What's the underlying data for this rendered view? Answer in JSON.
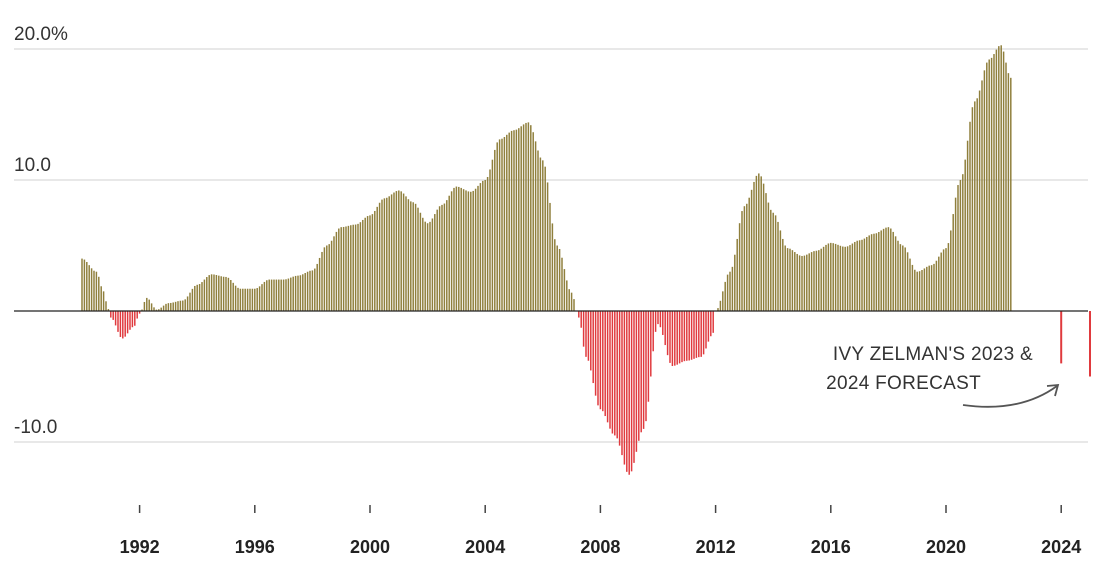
{
  "chart_data": {
    "type": "bar",
    "title": "",
    "xlabel": "",
    "ylabel": "",
    "ylim": [
      -15,
      21
    ],
    "xlim": [
      1990,
      2025
    ],
    "grid": true,
    "y_ticks": [
      {
        "value": 20,
        "label": "20.0%"
      },
      {
        "value": 10,
        "label": "10.0"
      },
      {
        "value": -10,
        "label": "-10.0"
      }
    ],
    "x_ticks": [
      "1992",
      "1996",
      "2000",
      "2004",
      "2008",
      "2012",
      "2016",
      "2020",
      "2024"
    ],
    "colors": {
      "positive": "#8f7f3c",
      "negative": "#e03a3e",
      "grid": "#d9d9d9",
      "axis": "#222222",
      "arrow": "#555555"
    },
    "series": [
      {
        "values": [
          [
            1990.0,
            4.0
          ],
          [
            1990.5,
            3.0
          ],
          [
            1990.75,
            1.5
          ],
          [
            1990.9,
            0.2
          ],
          [
            1991.0,
            -0.5
          ],
          [
            1991.4,
            -2.1
          ],
          [
            1991.8,
            -1.2
          ],
          [
            1992.0,
            -0.2
          ],
          [
            1992.25,
            1.0
          ],
          [
            1992.6,
            0.1
          ],
          [
            1993.0,
            0.6
          ],
          [
            1993.5,
            0.8
          ],
          [
            1994.0,
            2.0
          ],
          [
            1994.5,
            2.8
          ],
          [
            1995.0,
            2.6
          ],
          [
            1995.5,
            1.7
          ],
          [
            1996.0,
            1.7
          ],
          [
            1996.5,
            2.4
          ],
          [
            1997.0,
            2.4
          ],
          [
            1997.5,
            2.7
          ],
          [
            1998.0,
            3.1
          ],
          [
            1998.5,
            5.0
          ],
          [
            1999.0,
            6.4
          ],
          [
            1999.5,
            6.6
          ],
          [
            2000.0,
            7.3
          ],
          [
            2000.5,
            8.6
          ],
          [
            2001.0,
            9.2
          ],
          [
            2001.5,
            8.3
          ],
          [
            2002.0,
            6.7
          ],
          [
            2002.5,
            8.1
          ],
          [
            2003.0,
            9.5
          ],
          [
            2003.5,
            9.1
          ],
          [
            2004.0,
            10.0
          ],
          [
            2004.5,
            13.1
          ],
          [
            2005.0,
            13.8
          ],
          [
            2005.5,
            14.4
          ],
          [
            2006.0,
            11.5
          ],
          [
            2006.5,
            5.0
          ],
          [
            2007.0,
            1.4
          ],
          [
            2007.25,
            -0.5
          ],
          [
            2007.5,
            -3.5
          ],
          [
            2008.0,
            -7.5
          ],
          [
            2008.5,
            -9.5
          ],
          [
            2009.0,
            -12.5
          ],
          [
            2009.5,
            -9.0
          ],
          [
            2010.0,
            -1.0
          ],
          [
            2010.5,
            -4.2
          ],
          [
            2011.0,
            -3.8
          ],
          [
            2011.5,
            -3.5
          ],
          [
            2011.9,
            -1.8
          ],
          [
            2012.0,
            0.0
          ],
          [
            2012.5,
            3.0
          ],
          [
            2013.0,
            8.0
          ],
          [
            2013.5,
            10.5
          ],
          [
            2014.0,
            7.5
          ],
          [
            2014.5,
            4.8
          ],
          [
            2015.0,
            4.2
          ],
          [
            2015.5,
            4.6
          ],
          [
            2016.0,
            5.2
          ],
          [
            2016.5,
            4.9
          ],
          [
            2017.0,
            5.4
          ],
          [
            2017.5,
            5.9
          ],
          [
            2018.0,
            6.4
          ],
          [
            2018.5,
            5.0
          ],
          [
            2019.0,
            3.0
          ],
          [
            2019.5,
            3.5
          ],
          [
            2020.0,
            4.8
          ],
          [
            2020.5,
            10.0
          ],
          [
            2021.0,
            16.0
          ],
          [
            2021.5,
            19.2
          ],
          [
            2021.9,
            20.3
          ],
          [
            2022.25,
            17.8
          ]
        ]
      },
      {
        "name": "IVY ZELMAN'S 2023 & 2024 FORECAST",
        "values": [
          [
            2024.0,
            -4.0
          ],
          [
            2025.0,
            -5.0
          ]
        ]
      }
    ],
    "annotations": [
      {
        "lines": [
          "IVY ZELMAN'S 2023 &",
          "2024 FORECAST"
        ],
        "arrow_to": "forecast bars"
      }
    ]
  }
}
